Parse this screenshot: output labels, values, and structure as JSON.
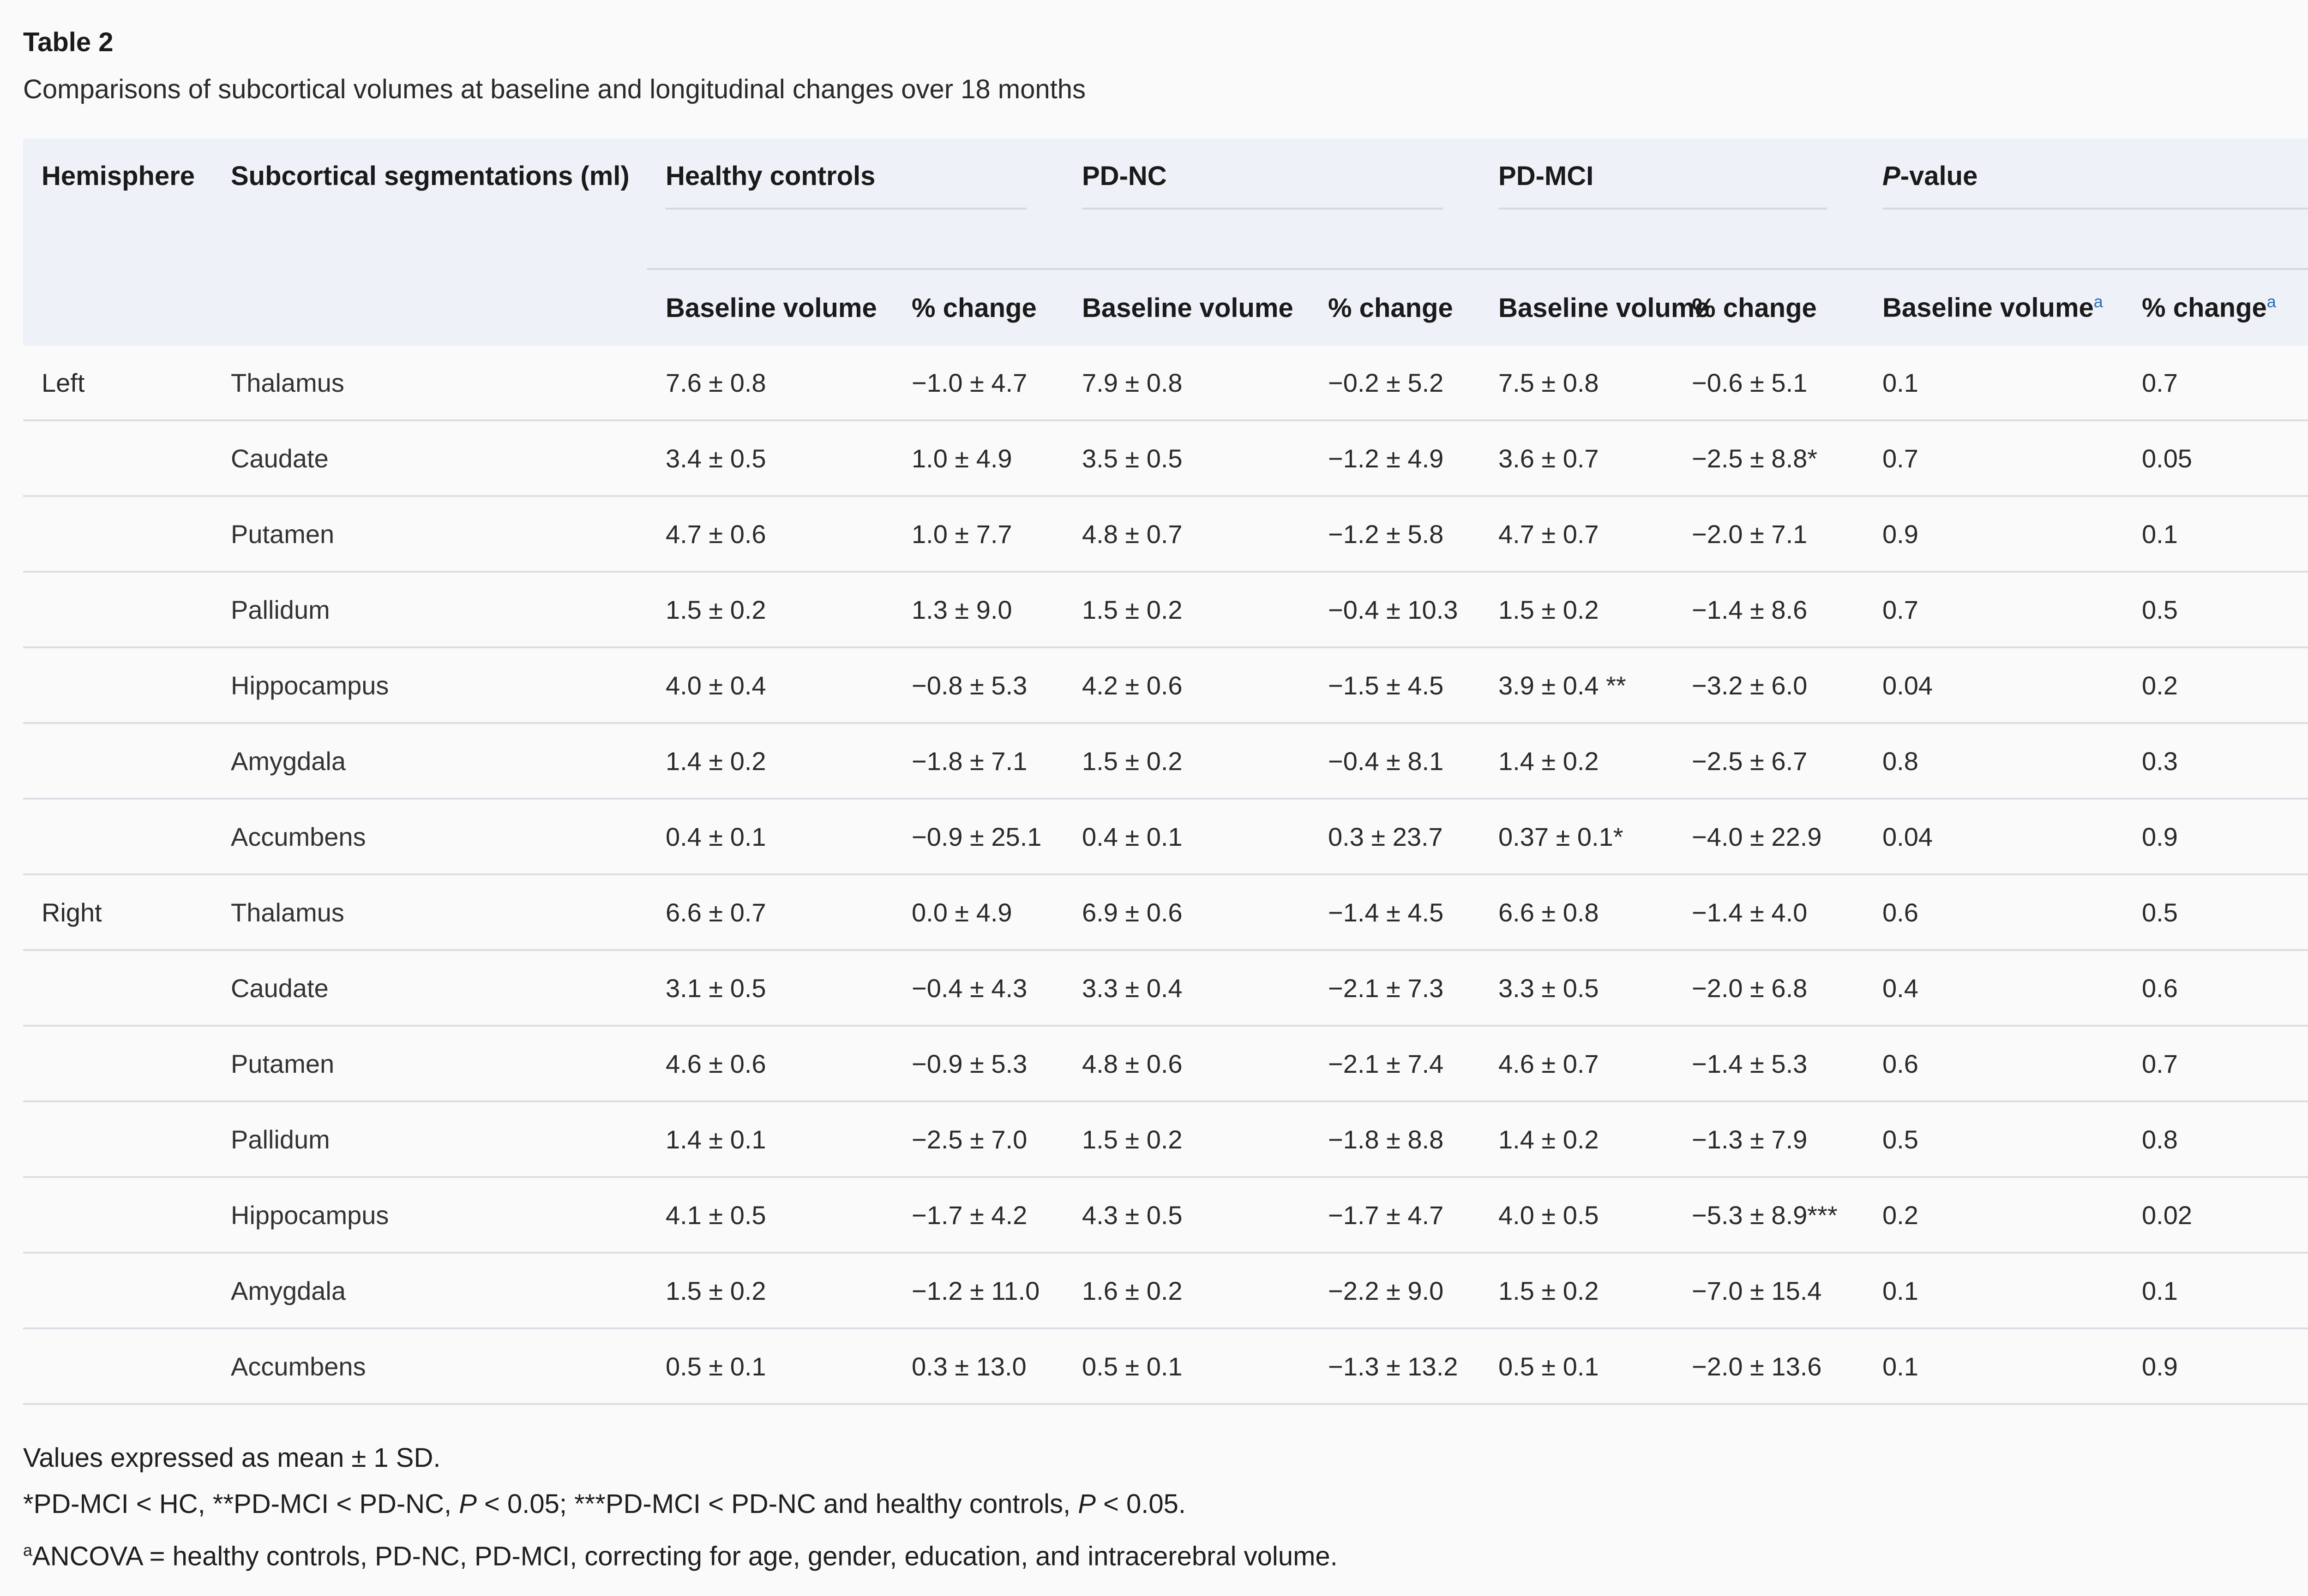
{
  "table_label": "Table 2",
  "caption": "Comparisons of subcortical volumes at baseline and longitudinal changes over 18 months",
  "header": {
    "hemisphere": "Hemisphere",
    "segmentations": "Subcortical segmentations (ml)",
    "groups": [
      "Healthy controls",
      "PD-NC",
      "PD-MCI"
    ],
    "pvalue_italic": "P",
    "pvalue_rest": "-value",
    "baseline_volume": "Baseline volume",
    "pct_change": "% change",
    "footnote_mark": "a"
  },
  "rows": [
    {
      "hemisphere": "Left",
      "segment": "Thalamus",
      "cells": [
        "7.6 ± 0.8",
        "−1.0 ± 4.7",
        "7.9 ± 0.8",
        "−0.2 ± 5.2",
        "7.5 ± 0.8",
        "−0.6 ± 5.1",
        "0.1",
        "0.7"
      ]
    },
    {
      "hemisphere": "",
      "segment": "Caudate",
      "cells": [
        "3.4 ± 0.5",
        "1.0 ± 4.9",
        "3.5 ± 0.5",
        "−1.2 ± 4.9",
        "3.6 ± 0.7",
        "−2.5 ± 8.8*",
        "0.7",
        "0.05"
      ]
    },
    {
      "hemisphere": "",
      "segment": "Putamen",
      "cells": [
        "4.7 ± 0.6",
        "1.0 ± 7.7",
        "4.8 ± 0.7",
        "−1.2 ± 5.8",
        "4.7 ± 0.7",
        "−2.0 ± 7.1",
        "0.9",
        "0.1"
      ]
    },
    {
      "hemisphere": "",
      "segment": "Pallidum",
      "cells": [
        "1.5 ± 0.2",
        "1.3 ± 9.0",
        "1.5 ± 0.2",
        "−0.4 ± 10.3",
        "1.5 ± 0.2",
        "−1.4 ± 8.6",
        "0.7",
        "0.5"
      ]
    },
    {
      "hemisphere": "",
      "segment": "Hippocampus",
      "cells": [
        "4.0 ± 0.4",
        "−0.8 ± 5.3",
        "4.2 ± 0.6",
        "−1.5 ± 4.5",
        "3.9 ± 0.4 **",
        "−3.2 ± 6.0",
        "0.04",
        "0.2"
      ]
    },
    {
      "hemisphere": "",
      "segment": "Amygdala",
      "cells": [
        "1.4 ± 0.2",
        "−1.8 ± 7.1",
        "1.5 ± 0.2",
        "−0.4 ± 8.1",
        "1.4 ± 0.2",
        "−2.5 ± 6.7",
        "0.8",
        "0.3"
      ]
    },
    {
      "hemisphere": "",
      "segment": "Accumbens",
      "cells": [
        "0.4 ± 0.1",
        "−0.9 ± 25.1",
        "0.4 ± 0.1",
        "0.3 ± 23.7",
        "0.37 ± 0.1*",
        "−4.0 ± 22.9",
        "0.04",
        "0.9"
      ]
    },
    {
      "hemisphere": "Right",
      "segment": "Thalamus",
      "cells": [
        "6.6 ± 0.7",
        "0.0 ± 4.9",
        "6.9 ± 0.6",
        "−1.4 ± 4.5",
        "6.6 ± 0.8",
        "−1.4 ± 4.0",
        "0.6",
        "0.5"
      ]
    },
    {
      "hemisphere": "",
      "segment": "Caudate",
      "cells": [
        "3.1 ± 0.5",
        "−0.4 ± 4.3",
        "3.3 ± 0.4",
        "−2.1 ± 7.3",
        "3.3 ± 0.5",
        "−2.0 ± 6.8",
        "0.4",
        "0.6"
      ]
    },
    {
      "hemisphere": "",
      "segment": "Putamen",
      "cells": [
        "4.6 ± 0.6",
        "−0.9 ± 5.3",
        "4.8 ± 0.6",
        "−2.1 ± 7.4",
        "4.6 ± 0.7",
        "−1.4 ± 5.3",
        "0.6",
        "0.7"
      ]
    },
    {
      "hemisphere": "",
      "segment": "Pallidum",
      "cells": [
        "1.4 ± 0.1",
        "−2.5 ± 7.0",
        "1.5 ± 0.2",
        "−1.8 ± 8.8",
        "1.4 ± 0.2",
        "−1.3 ± 7.9",
        "0.5",
        "0.8"
      ]
    },
    {
      "hemisphere": "",
      "segment": "Hippocampus",
      "cells": [
        "4.1 ± 0.5",
        "−1.7 ± 4.2",
        "4.3 ± 0.5",
        "−1.7 ± 4.7",
        "4.0 ± 0.5",
        "−5.3 ± 8.9***",
        "0.2",
        "0.02"
      ]
    },
    {
      "hemisphere": "",
      "segment": "Amygdala",
      "cells": [
        "1.5 ± 0.2",
        "−1.2 ± 11.0",
        "1.6 ± 0.2",
        "−2.2 ± 9.0",
        "1.5 ± 0.2",
        "−7.0 ± 15.4",
        "0.1",
        "0.1"
      ]
    },
    {
      "hemisphere": "",
      "segment": "Accumbens",
      "cells": [
        "0.5 ± 0.1",
        "0.3 ± 13.0",
        "0.5 ± 0.1",
        "−1.3 ± 13.2",
        "0.5 ± 0.1",
        "−2.0 ± 13.6",
        "0.1",
        "0.9"
      ]
    }
  ],
  "footnotes": {
    "line1": "Values expressed as mean ± 1 SD.",
    "line2_a": "*PD-MCI < HC, **PD-MCI < PD-NC, ",
    "line2_p1": "P",
    "line2_b": " < 0.05; ***PD-MCI < PD-NC and healthy controls, ",
    "line2_p2": "P",
    "line2_c": " < 0.05.",
    "line3_mark": "a",
    "line3": "ANCOVA = healthy controls, PD-NC, PD-MCI, correcting for age, gender, education, and intracerebral volume."
  }
}
